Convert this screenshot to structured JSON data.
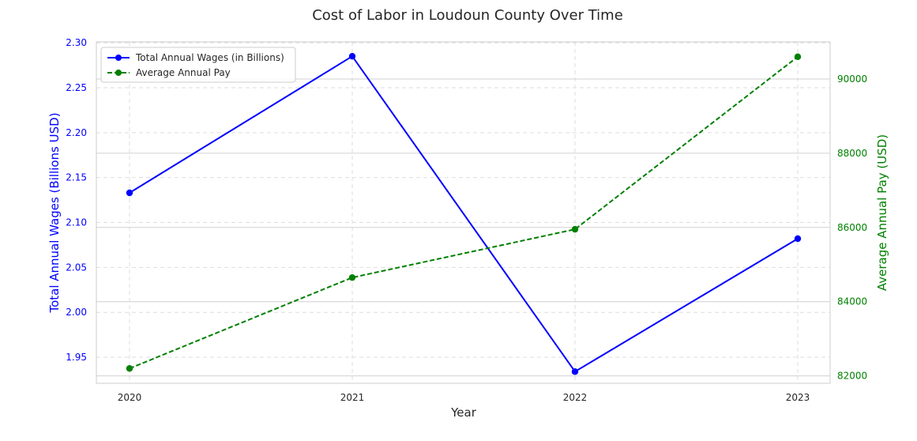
{
  "chart_data": {
    "type": "line",
    "title": "Cost of Labor in Loudoun County Over Time",
    "xlabel": "Year",
    "x": [
      2020,
      2021,
      2022,
      2023
    ],
    "x_ticks": [
      "2020",
      "2021",
      "2022",
      "2023"
    ],
    "left_axis": {
      "label": "Total Annual Wages (Billions USD)",
      "range": [
        1.921,
        2.301
      ],
      "ticks": [
        "1.95",
        "2.00",
        "2.05",
        "2.10",
        "2.15",
        "2.20",
        "2.25",
        "2.30"
      ],
      "color": "#0000ff"
    },
    "right_axis": {
      "label": "Average Annual Pay (USD)",
      "range": [
        81800,
        91000
      ],
      "ticks": [
        "82000",
        "84000",
        "86000",
        "88000",
        "90000"
      ],
      "color": "#008000"
    },
    "series": [
      {
        "name": "Total Annual Wages (in Billions)",
        "axis": "left",
        "values": [
          2.133,
          2.285,
          1.934,
          2.082
        ],
        "color": "#0000ff",
        "style": "solid"
      },
      {
        "name": "Average Annual Pay",
        "axis": "right",
        "values": [
          82200,
          84650,
          85950,
          90600
        ],
        "color": "#008000",
        "style": "dashed"
      }
    ],
    "grid": true,
    "legend_position": "top-left"
  }
}
